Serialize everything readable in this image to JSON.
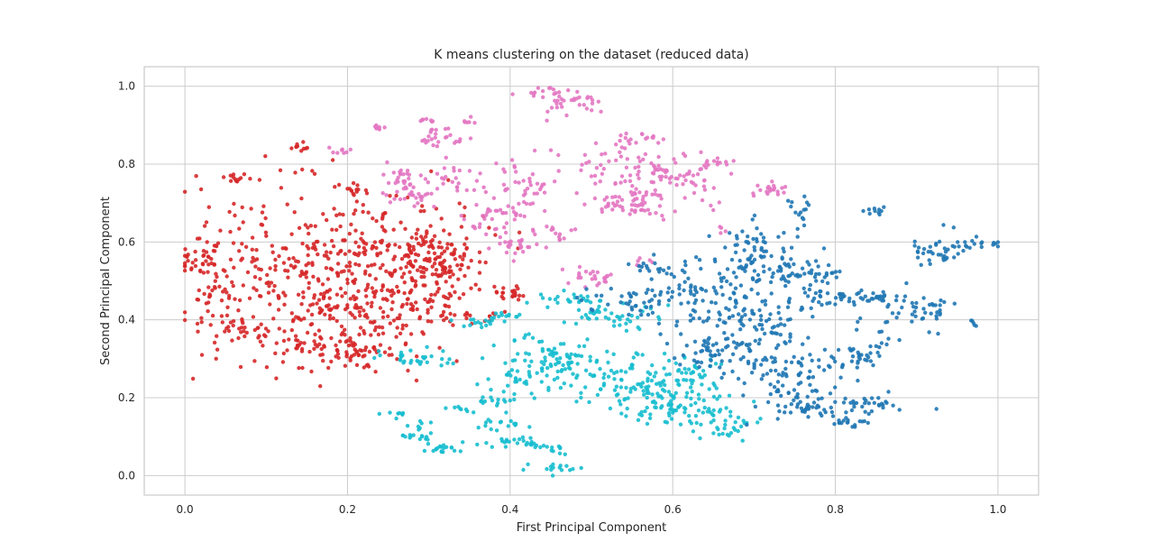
{
  "chart_data": {
    "type": "scatter",
    "title": "K means clustering on the dataset (reduced data)",
    "xlabel": "First Principal Component",
    "ylabel": "Second Principal Component",
    "xlim": [
      -0.05,
      1.05
    ],
    "ylim": [
      -0.05,
      1.05
    ],
    "xticks": [
      0.0,
      0.2,
      0.4,
      0.6,
      0.8,
      1.0
    ],
    "yticks": [
      0.0,
      0.2,
      0.4,
      0.6,
      0.8,
      1.0
    ],
    "xtick_labels": [
      "0.0",
      "0.2",
      "0.4",
      "0.6",
      "0.8",
      "1.0"
    ],
    "ytick_labels": [
      "0.0",
      "0.2",
      "0.4",
      "0.6",
      "0.8",
      "1.0"
    ],
    "grid": true,
    "legend": "none",
    "clusters": [
      {
        "color": "#d62728",
        "regions": [
          {
            "center": [
              0.02,
              0.55
            ],
            "spread": [
              0.015,
              0.035
            ],
            "count": 35
          },
          {
            "center": [
              0.03,
              0.47
            ],
            "spread": [
              0.012,
              0.012
            ],
            "count": 15
          },
          {
            "center": [
              0.06,
              0.76
            ],
            "spread": [
              0.015,
              0.01
            ],
            "count": 12
          },
          {
            "center": [
              0.1,
              0.5
            ],
            "spread": [
              0.05,
              0.12
            ],
            "count": 160
          },
          {
            "center": [
              0.08,
              0.37
            ],
            "spread": [
              0.03,
              0.02
            ],
            "count": 40
          },
          {
            "center": [
              0.14,
              0.845
            ],
            "spread": [
              0.006,
              0.006
            ],
            "count": 10
          },
          {
            "center": [
              0.14,
              0.78
            ],
            "spread": [
              0.01,
              0.005
            ],
            "count": 5
          },
          {
            "center": [
              0.21,
              0.735
            ],
            "spread": [
              0.012,
              0.008
            ],
            "count": 15
          },
          {
            "center": [
              0.2,
              0.48
            ],
            "spread": [
              0.05,
              0.1
            ],
            "count": 250
          },
          {
            "center": [
              0.2,
              0.33
            ],
            "spread": [
              0.04,
              0.025
            ],
            "count": 80
          },
          {
            "center": [
              0.27,
              0.56
            ],
            "spread": [
              0.045,
              0.07
            ],
            "count": 150
          },
          {
            "center": [
              0.32,
              0.55
            ],
            "spread": [
              0.025,
              0.04
            ],
            "count": 80
          },
          {
            "center": [
              0.3,
              0.43
            ],
            "spread": [
              0.03,
              0.03
            ],
            "count": 40
          },
          {
            "center": [
              0.37,
              0.41
            ],
            "spread": [
              0.015,
              0.008
            ],
            "count": 12
          },
          {
            "center": [
              0.4,
              0.47
            ],
            "spread": [
              0.01,
              0.008
            ],
            "count": 20
          }
        ]
      },
      {
        "color": "#e377c2",
        "regions": [
          {
            "center": [
              0.19,
              0.835
            ],
            "spread": [
              0.007,
              0.005
            ],
            "count": 8
          },
          {
            "center": [
              0.24,
              0.895
            ],
            "spread": [
              0.008,
              0.004
            ],
            "count": 8
          },
          {
            "center": [
              0.3,
              0.915
            ],
            "spread": [
              0.006,
              0.005
            ],
            "count": 8
          },
          {
            "center": [
              0.29,
              0.86
            ],
            "spread": [
              0.01,
              0.005
            ],
            "count": 8
          },
          {
            "center": [
              0.32,
              0.88
            ],
            "spread": [
              0.012,
              0.01
            ],
            "count": 12
          },
          {
            "center": [
              0.35,
              0.91
            ],
            "spread": [
              0.006,
              0.004
            ],
            "count": 6
          },
          {
            "center": [
              0.34,
              0.86
            ],
            "spread": [
              0.006,
              0.006
            ],
            "count": 6
          },
          {
            "center": [
              0.27,
              0.77
            ],
            "spread": [
              0.015,
              0.015
            ],
            "count": 25
          },
          {
            "center": [
              0.28,
              0.72
            ],
            "spread": [
              0.015,
              0.015
            ],
            "count": 25
          },
          {
            "center": [
              0.33,
              0.76
            ],
            "spread": [
              0.02,
              0.03
            ],
            "count": 30
          },
          {
            "center": [
              0.38,
              0.66
            ],
            "spread": [
              0.02,
              0.025
            ],
            "count": 35
          },
          {
            "center": [
              0.41,
              0.59
            ],
            "spread": [
              0.02,
              0.015
            ],
            "count": 25
          },
          {
            "center": [
              0.42,
              0.75
            ],
            "spread": [
              0.02,
              0.04
            ],
            "count": 40
          },
          {
            "center": [
              0.44,
              0.985
            ],
            "spread": [
              0.015,
              0.008
            ],
            "count": 15
          },
          {
            "center": [
              0.47,
              0.96
            ],
            "spread": [
              0.02,
              0.02
            ],
            "count": 30
          },
          {
            "center": [
              0.46,
              0.62
            ],
            "spread": [
              0.01,
              0.012
            ],
            "count": 12
          },
          {
            "center": [
              0.5,
              0.51
            ],
            "spread": [
              0.015,
              0.012
            ],
            "count": 25
          },
          {
            "center": [
              0.56,
              0.87
            ],
            "spread": [
              0.015,
              0.008
            ],
            "count": 15
          },
          {
            "center": [
              0.53,
              0.8
            ],
            "spread": [
              0.03,
              0.03
            ],
            "count": 50
          },
          {
            "center": [
              0.55,
              0.7
            ],
            "spread": [
              0.03,
              0.02
            ],
            "count": 60
          },
          {
            "center": [
              0.61,
              0.77
            ],
            "spread": [
              0.03,
              0.04
            ],
            "count": 60
          },
          {
            "center": [
              0.65,
              0.805
            ],
            "spread": [
              0.01,
              0.006
            ],
            "count": 10
          },
          {
            "center": [
              0.72,
              0.73
            ],
            "spread": [
              0.01,
              0.012
            ],
            "count": 20
          },
          {
            "center": [
              0.56,
              0.55
            ],
            "spread": [
              0.008,
              0.006
            ],
            "count": 6
          },
          {
            "center": [
              0.66,
              0.63
            ],
            "spread": [
              0.004,
              0.006
            ],
            "count": 4
          }
        ]
      },
      {
        "color": "#17becf",
        "regions": [
          {
            "center": [
              0.29,
              0.3
            ],
            "spread": [
              0.03,
              0.015
            ],
            "count": 30
          },
          {
            "center": [
              0.36,
              0.39
            ],
            "spread": [
              0.015,
              0.008
            ],
            "count": 12
          },
          {
            "center": [
              0.39,
              0.41
            ],
            "spread": [
              0.012,
              0.008
            ],
            "count": 15
          },
          {
            "center": [
              0.27,
              0.16
            ],
            "spread": [
              0.01,
              0.005
            ],
            "count": 8
          },
          {
            "center": [
              0.28,
              0.13
            ],
            "spread": [
              0.008,
              0.006
            ],
            "count": 6
          },
          {
            "center": [
              0.28,
              0.1
            ],
            "spread": [
              0.012,
              0.006
            ],
            "count": 15
          },
          {
            "center": [
              0.32,
              0.07
            ],
            "spread": [
              0.02,
              0.008
            ],
            "count": 20
          },
          {
            "center": [
              0.34,
              0.17
            ],
            "spread": [
              0.01,
              0.006
            ],
            "count": 8
          },
          {
            "center": [
              0.38,
              0.2
            ],
            "spread": [
              0.015,
              0.015
            ],
            "count": 18
          },
          {
            "center": [
              0.39,
              0.13
            ],
            "spread": [
              0.015,
              0.008
            ],
            "count": 15
          },
          {
            "center": [
              0.4,
              0.09
            ],
            "spread": [
              0.015,
              0.008
            ],
            "count": 15
          },
          {
            "center": [
              0.44,
              0.07
            ],
            "spread": [
              0.02,
              0.01
            ],
            "count": 20
          },
          {
            "center": [
              0.46,
              0.02
            ],
            "spread": [
              0.02,
              0.008
            ],
            "count": 15
          },
          {
            "center": [
              0.41,
              0.25
            ],
            "spread": [
              0.025,
              0.03
            ],
            "count": 30
          },
          {
            "center": [
              0.45,
              0.31
            ],
            "spread": [
              0.03,
              0.035
            ],
            "count": 50
          },
          {
            "center": [
              0.49,
              0.29
            ],
            "spread": [
              0.02,
              0.03
            ],
            "count": 40
          },
          {
            "center": [
              0.48,
              0.45
            ],
            "spread": [
              0.02,
              0.01
            ],
            "count": 25
          },
          {
            "center": [
              0.52,
              0.41
            ],
            "spread": [
              0.03,
              0.015
            ],
            "count": 40
          },
          {
            "center": [
              0.57,
              0.24
            ],
            "spread": [
              0.04,
              0.04
            ],
            "count": 120
          },
          {
            "center": [
              0.6,
              0.17
            ],
            "spread": [
              0.03,
              0.02
            ],
            "count": 60
          },
          {
            "center": [
              0.67,
              0.13
            ],
            "spread": [
              0.02,
              0.02
            ],
            "count": 35
          },
          {
            "center": [
              0.62,
              0.26
            ],
            "spread": [
              0.015,
              0.02
            ],
            "count": 20
          }
        ]
      },
      {
        "color": "#1f77b4",
        "regions": [
          {
            "center": [
              0.55,
              0.45
            ],
            "spread": [
              0.03,
              0.02
            ],
            "count": 40
          },
          {
            "center": [
              0.59,
              0.53
            ],
            "spread": [
              0.02,
              0.01
            ],
            "count": 20
          },
          {
            "center": [
              0.65,
              0.45
            ],
            "spread": [
              0.04,
              0.05
            ],
            "count": 100
          },
          {
            "center": [
              0.7,
              0.58
            ],
            "spread": [
              0.03,
              0.03
            ],
            "count": 60
          },
          {
            "center": [
              0.74,
              0.53
            ],
            "spread": [
              0.03,
              0.02
            ],
            "count": 40
          },
          {
            "center": [
              0.76,
              0.68
            ],
            "spread": [
              0.01,
              0.015
            ],
            "count": 15
          },
          {
            "center": [
              0.72,
              0.4
            ],
            "spread": [
              0.03,
              0.03
            ],
            "count": 50
          },
          {
            "center": [
              0.68,
              0.32
            ],
            "spread": [
              0.04,
              0.03
            ],
            "count": 90
          },
          {
            "center": [
              0.74,
              0.23
            ],
            "spread": [
              0.03,
              0.04
            ],
            "count": 80
          },
          {
            "center": [
              0.77,
              0.17
            ],
            "spread": [
              0.02,
              0.008
            ],
            "count": 20
          },
          {
            "center": [
              0.78,
              0.47
            ],
            "spread": [
              0.02,
              0.03
            ],
            "count": 40
          },
          {
            "center": [
              0.82,
              0.3
            ],
            "spread": [
              0.025,
              0.015
            ],
            "count": 30
          },
          {
            "center": [
              0.84,
              0.46
            ],
            "spread": [
              0.02,
              0.01
            ],
            "count": 30
          },
          {
            "center": [
              0.845,
              0.68
            ],
            "spread": [
              0.008,
              0.005
            ],
            "count": 10
          },
          {
            "center": [
              0.85,
              0.34
            ],
            "spread": [
              0.015,
              0.03
            ],
            "count": 20
          },
          {
            "center": [
              0.84,
              0.19
            ],
            "spread": [
              0.025,
              0.01
            ],
            "count": 30
          },
          {
            "center": [
              0.82,
              0.14
            ],
            "spread": [
              0.012,
              0.01
            ],
            "count": 20
          },
          {
            "center": [
              0.9,
              0.43
            ],
            "spread": [
              0.02,
              0.025
            ],
            "count": 40
          },
          {
            "center": [
              0.93,
              0.58
            ],
            "spread": [
              0.02,
              0.02
            ],
            "count": 40
          },
          {
            "center": [
              0.98,
              0.595
            ],
            "spread": [
              0.015,
              0.005
            ],
            "count": 12
          },
          {
            "center": [
              0.97,
              0.39
            ],
            "spread": [
              0.005,
              0.005
            ],
            "count": 5
          }
        ]
      }
    ]
  }
}
